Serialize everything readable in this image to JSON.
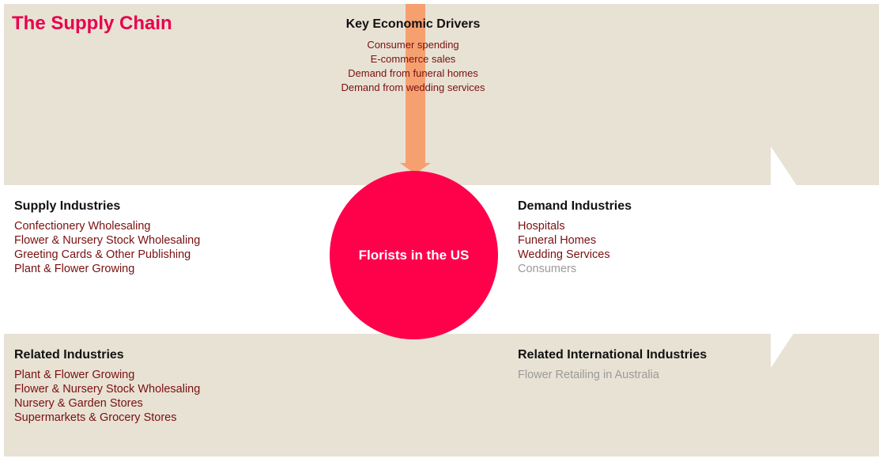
{
  "title": "The Supply Chain",
  "colors": {
    "title": "#e8004e",
    "circle": "#ff004b",
    "arrow_drivers": "#f6a070",
    "background": "#e8e2d4",
    "item_text": "#7a1010",
    "muted_text": "#9a9a9a"
  },
  "key_drivers": {
    "heading": "Key Economic Drivers",
    "items": [
      "Consumer spending",
      "E-commerce sales",
      "Demand from funeral homes",
      "Demand from wedding services"
    ]
  },
  "center": {
    "label": "Florists in the US"
  },
  "supply": {
    "heading": "Supply Industries",
    "items": [
      "Confectionery Wholesaling",
      "Flower & Nursery Stock Wholesaling",
      "Greeting Cards & Other Publishing",
      "Plant & Flower Growing"
    ]
  },
  "demand": {
    "heading": "Demand Industries",
    "items": [
      "Hospitals",
      "Funeral Homes",
      "Wedding Services",
      "Consumers"
    ]
  },
  "related": {
    "heading": "Related Industries",
    "items": [
      "Plant & Flower Growing",
      "Flower & Nursery Stock Wholesaling",
      "Nursery & Garden Stores",
      "Supermarkets & Grocery Stores"
    ]
  },
  "related_international": {
    "heading": "Related International Industries",
    "items": [
      "Flower Retailing in Australia"
    ]
  }
}
